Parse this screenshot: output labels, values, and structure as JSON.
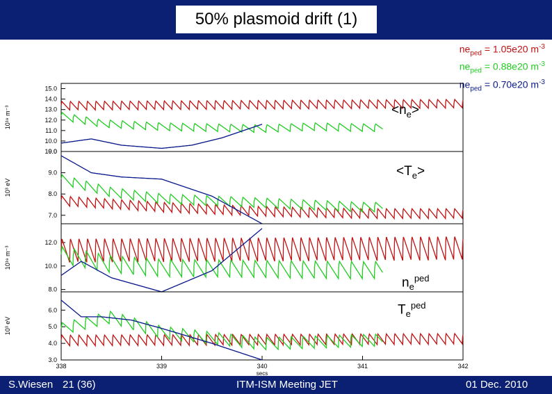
{
  "title": "50% plasmoid drift (1)",
  "footer": {
    "left_name": "S.Wiesen",
    "left_page": "21 (36)",
    "center": "ITM-ISM Meeting JET",
    "right": "01 Dec. 2010"
  },
  "legend": [
    {
      "prefix": "ne",
      "sub": "ped",
      "value": " = 1.05e20 m",
      "sup": "-3",
      "color": "#c01010"
    },
    {
      "prefix": "ne",
      "sub": "ped",
      "value": " = 0.88e20 m",
      "sup": "-3",
      "color": "#22cc22"
    },
    {
      "prefix": "ne",
      "sub": "ped",
      "value": " = 0.70e20 m",
      "sup": "-3",
      "color": "#0a1a8c"
    }
  ],
  "panel_labels": [
    {
      "pre": "<n",
      "sub": "e",
      "post": ">",
      "sup": ""
    },
    {
      "pre": "<T",
      "sub": "e",
      "post": ">",
      "sup": ""
    },
    {
      "pre": "n",
      "sub": "e",
      "post": "",
      "sup": "ped"
    },
    {
      "pre": "T",
      "sub": "e",
      "post": "",
      "sup": "ped"
    }
  ],
  "chart_data": {
    "type": "line",
    "xlabel": "secs",
    "x_ticks": [
      "338",
      "339",
      "340",
      "341",
      "342"
    ],
    "xlim": [
      338,
      342
    ],
    "colors": {
      "red": "#c01010",
      "green": "#22cc22",
      "blue": "#0a1a8c"
    },
    "panels": [
      {
        "ylabel": "10¹⁹  m⁻³",
        "ylim": [
          9.0,
          15.5
        ],
        "y_ticks": [
          "15.0",
          "14.0",
          "13.0",
          "12.0",
          "11.0",
          "10.0",
          "9.0"
        ],
        "series": [
          {
            "color": "red",
            "period": 0.085,
            "x": [
              338.0,
              342.0
            ],
            "y": [
              13.4,
              13.6
            ],
            "amp": 0.9,
            "phase_end": 342.0
          },
          {
            "color": "green",
            "period": 0.12,
            "x": [
              338.0,
              338.4,
              339.0,
              340.0,
              340.5,
              341.0,
              342.0
            ],
            "y": [
              12.4,
              11.7,
              11.4,
              11.2,
              11.4,
              11.3,
              11.2
            ],
            "amp": 0.8,
            "phase_end": 341.2
          },
          {
            "color": "blue",
            "period": 0,
            "x": [
              338.0,
              338.3,
              338.6,
              339.0,
              339.3,
              339.6,
              340.0
            ],
            "y": [
              9.8,
              10.2,
              9.6,
              9.3,
              9.6,
              10.3,
              11.6
            ],
            "amp": 0,
            "phase_end": 340.0
          }
        ]
      },
      {
        "ylabel": "10³  eV",
        "ylim": [
          6.6,
          10.0
        ],
        "y_ticks": [
          "10.0",
          "9.0",
          "8.0",
          "7.0"
        ],
        "series": [
          {
            "color": "red",
            "period": 0.085,
            "x": [
              338.0,
              339.0,
              340.0,
              341.0,
              342.0
            ],
            "y": [
              7.7,
              7.4,
              7.2,
              7.1,
              7.1
            ],
            "amp": 0.5,
            "phase_end": 342.0
          },
          {
            "color": "green",
            "period": 0.12,
            "x": [
              338.0,
              338.5,
              339.0,
              340.0,
              341.0,
              342.0
            ],
            "y": [
              8.7,
              8.1,
              7.8,
              7.6,
              7.4,
              7.4
            ],
            "amp": 0.5,
            "phase_end": 341.2
          },
          {
            "color": "blue",
            "period": 0,
            "x": [
              338.0,
              338.3,
              338.6,
              339.0,
              339.5,
              340.0
            ],
            "y": [
              9.8,
              9.0,
              8.8,
              8.7,
              7.9,
              6.6
            ],
            "amp": 0,
            "phase_end": 340.0
          }
        ]
      },
      {
        "ylabel": "10¹⁹  m⁻³",
        "ylim": [
          7.8,
          13.6
        ],
        "y_ticks": [
          "12.0",
          "10.0",
          "8.0"
        ],
        "series": [
          {
            "color": "red",
            "period": 0.085,
            "x": [
              338.0,
              342.0
            ],
            "y": [
              11.4,
              11.6
            ],
            "amp": 2.2,
            "phase_end": 342.0
          },
          {
            "color": "green",
            "period": 0.12,
            "x": [
              338.0,
              338.5,
              339.0,
              340.0,
              341.0,
              342.0
            ],
            "y": [
              11.0,
              10.2,
              9.9,
              9.8,
              9.7,
              9.8
            ],
            "amp": 1.6,
            "phase_end": 341.2
          },
          {
            "color": "blue",
            "period": 0,
            "x": [
              338.0,
              338.2,
              338.5,
              339.0,
              339.5,
              340.0
            ],
            "y": [
              9.2,
              10.4,
              9.0,
              7.8,
              9.6,
              13.2
            ],
            "amp": 0,
            "phase_end": 340.0
          }
        ]
      },
      {
        "ylabel": "10³  eV",
        "ylim": [
          3.0,
          7.1
        ],
        "y_ticks": [
          "6.0",
          "5.0",
          "4.0",
          "3.0"
        ],
        "series": [
          {
            "color": "red",
            "period": 0.085,
            "x": [
              338.0,
              342.0
            ],
            "y": [
              4.2,
              4.3
            ],
            "amp": 0.7,
            "phase_end": 342.0
          },
          {
            "color": "green",
            "period": 0.12,
            "x": [
              338.0,
              338.5,
              339.0,
              340.0,
              341.0,
              342.0
            ],
            "y": [
              4.9,
              5.6,
              4.7,
              4.0,
              4.2,
              4.3
            ],
            "amp": 0.8,
            "phase_end": 341.2
          },
          {
            "color": "blue",
            "period": 0,
            "x": [
              338.0,
              338.2,
              338.4,
              338.7,
              339.0,
              339.5,
              340.0
            ],
            "y": [
              6.6,
              5.6,
              5.6,
              5.4,
              4.9,
              4.0,
              3.0
            ],
            "amp": 0,
            "phase_end": 340.0
          }
        ]
      }
    ]
  }
}
